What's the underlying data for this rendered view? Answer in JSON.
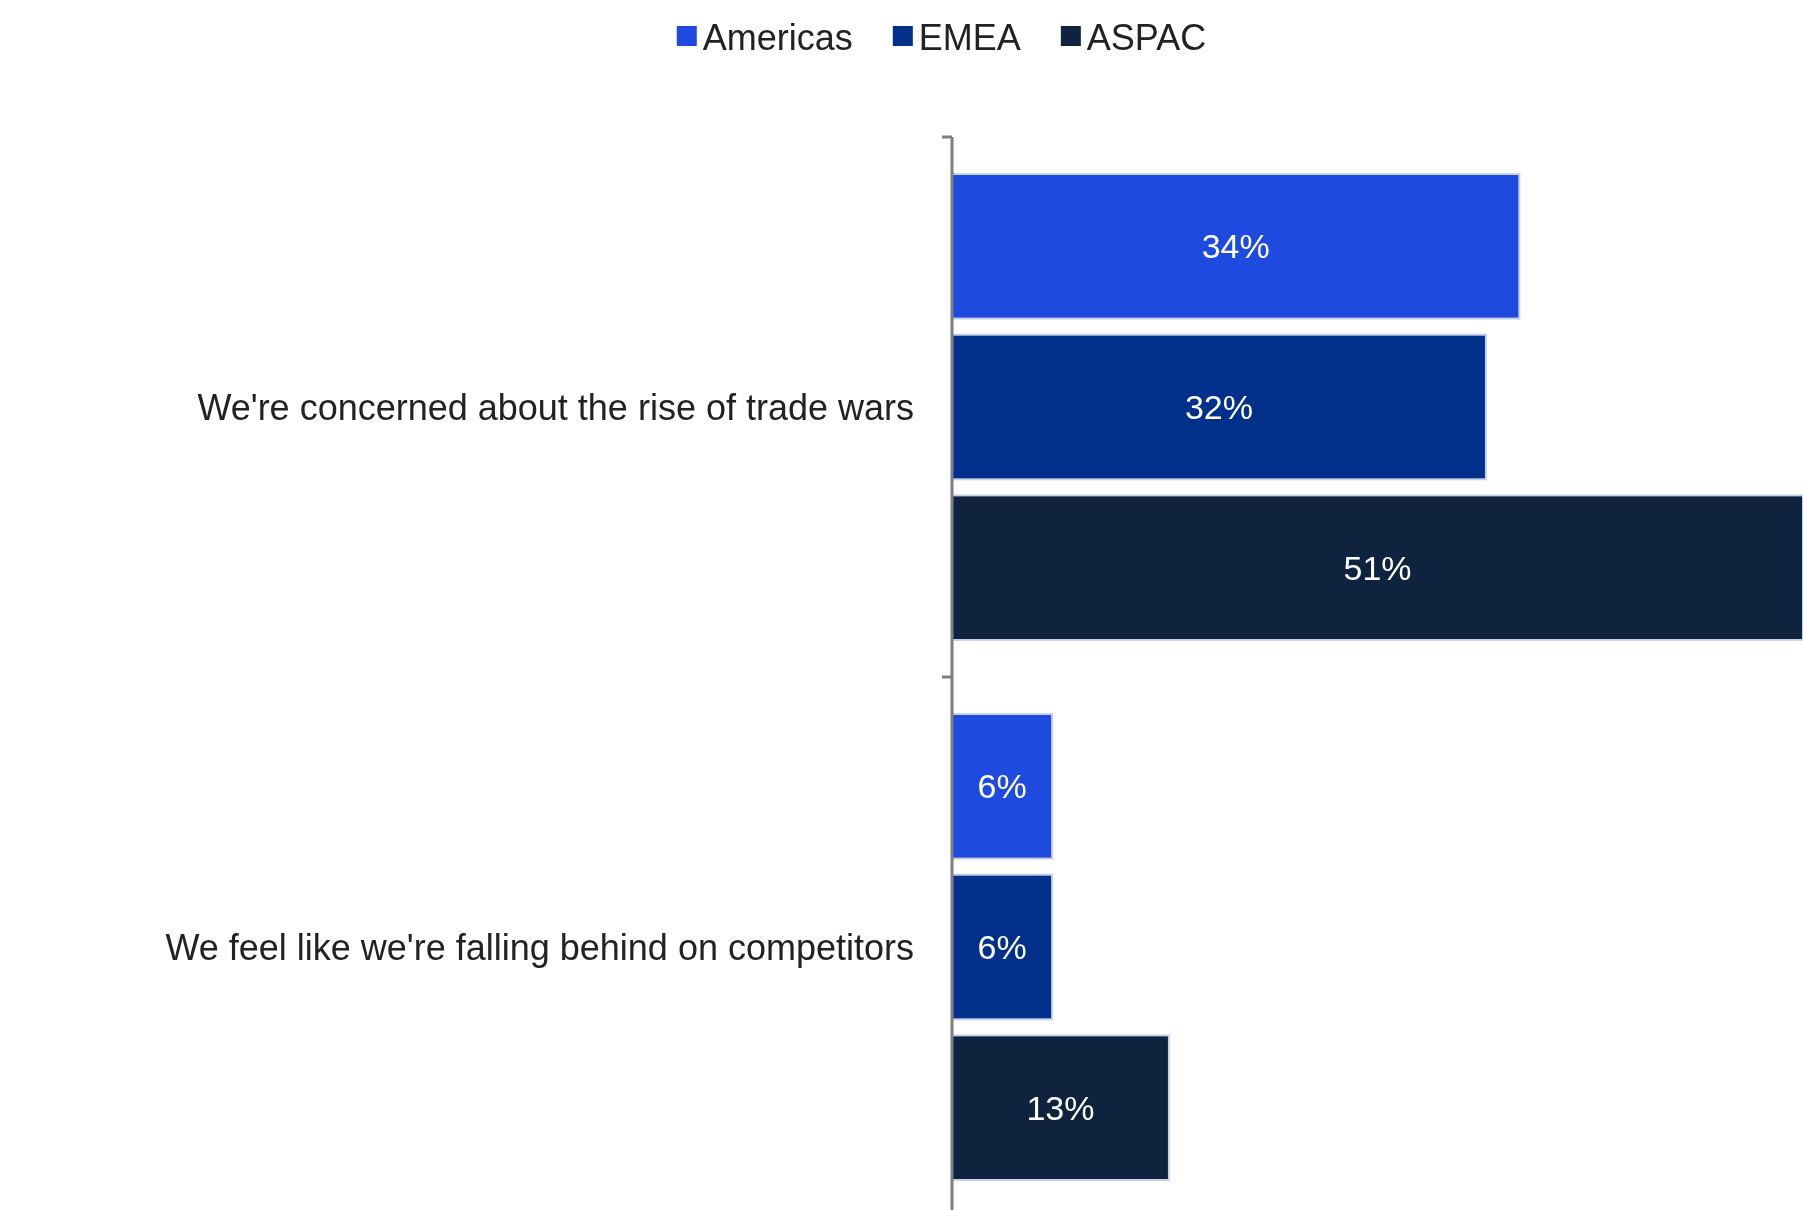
{
  "chart_data": {
    "type": "bar",
    "orientation": "horizontal",
    "categories": [
      "We're concerned about the rise of trade wars",
      "We feel like we're falling behind on competitors"
    ],
    "series": [
      {
        "name": "Americas",
        "color": "#1f4ae0",
        "values": [
          34,
          6
        ],
        "value_labels": [
          "34%",
          "6%"
        ]
      },
      {
        "name": "EMEA",
        "color": "#00308a",
        "values": [
          32,
          6
        ],
        "value_labels": [
          "32%",
          "6%"
        ]
      },
      {
        "name": "ASPAC",
        "color": "#0f233f",
        "values": [
          51,
          13
        ],
        "value_labels": [
          "51%",
          "13%"
        ]
      }
    ],
    "xlim": [
      0,
      51
    ],
    "tick_labels": "y",
    "legend": "top"
  }
}
